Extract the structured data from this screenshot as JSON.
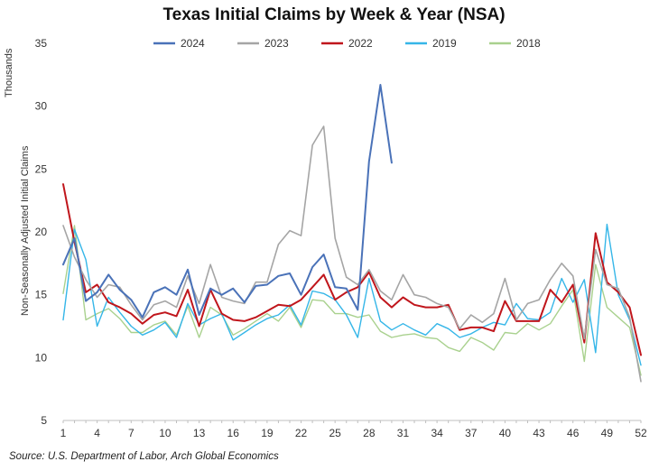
{
  "chart_data": {
    "type": "line",
    "title": "Texas Initial Claims by Week & Year (NSA)",
    "ylabel": "Non-Seasonally Adjusted Initial Claims",
    "yunit": "Thousands",
    "xlabel": "",
    "ylim": [
      5,
      35
    ],
    "yticks": [
      5,
      10,
      15,
      20,
      25,
      30,
      35
    ],
    "xlim": [
      1,
      52
    ],
    "xticks": [
      1,
      4,
      7,
      10,
      13,
      16,
      19,
      22,
      25,
      28,
      31,
      34,
      37,
      40,
      43,
      46,
      49,
      52
    ],
    "legend_position": "top",
    "source": "Source: U.S. Department of Labor, Arch Global Economics",
    "series": [
      {
        "name": "2024",
        "color": "#4a72b8",
        "stroke_width": 2,
        "values": [
          17.4,
          19.5,
          14.5,
          15.2,
          16.6,
          15.4,
          14.6,
          13.2,
          15.2,
          15.6,
          15.0,
          17.0,
          13.4,
          15.5,
          15.0,
          15.5,
          14.4,
          15.7,
          15.8,
          16.5,
          16.7,
          15.0,
          17.2,
          18.2,
          15.6,
          15.5,
          13.8,
          25.6,
          31.7,
          25.5
        ]
      },
      {
        "name": "2023",
        "color": "#a5a5a5",
        "stroke_width": 1.6,
        "values": [
          20.5,
          18.0,
          16.2,
          14.8,
          15.8,
          15.6,
          14.2,
          13.0,
          14.2,
          14.5,
          14.0,
          16.5,
          14.3,
          17.4,
          14.8,
          14.5,
          14.3,
          16.0,
          16.0,
          19.0,
          20.1,
          19.7,
          26.9,
          28.4,
          19.5,
          16.4,
          15.8,
          17.0,
          15.3,
          14.6,
          16.6,
          15.0,
          14.8,
          14.3,
          14.0,
          12.3,
          13.4,
          12.8,
          13.5,
          16.3,
          13.0,
          14.3,
          14.6,
          16.2,
          17.5,
          16.5,
          11.5,
          18.6,
          15.8,
          15.5,
          13.2,
          8.1
        ]
      },
      {
        "name": "2022",
        "color": "#c0161c",
        "stroke_width": 2,
        "values": [
          23.8,
          19.2,
          15.2,
          15.8,
          14.4,
          14.0,
          13.5,
          12.7,
          13.4,
          13.6,
          13.3,
          15.4,
          12.5,
          15.4,
          13.5,
          13.0,
          12.9,
          13.2,
          13.7,
          14.2,
          14.1,
          14.6,
          15.6,
          16.6,
          14.6,
          15.2,
          15.6,
          16.8,
          14.8,
          14.0,
          14.8,
          14.2,
          14.0,
          14.0,
          14.2,
          12.2,
          12.4,
          12.4,
          12.1,
          14.5,
          12.9,
          12.9,
          12.9,
          15.4,
          14.4,
          15.8,
          11.2,
          19.9,
          16.0,
          15.2,
          14.0,
          10.2
        ]
      },
      {
        "name": "2019",
        "color": "#35b6e8",
        "stroke_width": 1.4,
        "values": [
          13.0,
          20.2,
          17.8,
          12.5,
          14.8,
          13.6,
          12.5,
          11.8,
          12.2,
          12.8,
          11.6,
          14.3,
          12.6,
          13.1,
          13.5,
          11.4,
          12.0,
          12.6,
          13.1,
          13.4,
          14.2,
          12.6,
          15.3,
          15.1,
          14.6,
          13.4,
          11.6,
          16.3,
          12.9,
          12.2,
          12.7,
          12.2,
          11.8,
          12.7,
          12.3,
          11.6,
          11.9,
          12.4,
          12.8,
          12.6,
          14.3,
          13.1,
          13.0,
          13.6,
          16.3,
          14.4,
          16.2,
          10.4,
          20.6,
          15.0,
          13.0,
          9.4
        ]
      },
      {
        "name": "2018",
        "color": "#a9d18e",
        "stroke_width": 1.4,
        "values": [
          15.1,
          20.5,
          13.0,
          13.5,
          13.9,
          13.1,
          12.0,
          12.0,
          12.6,
          12.9,
          11.8,
          14.1,
          11.6,
          14.0,
          13.4,
          11.8,
          12.3,
          12.9,
          13.5,
          12.9,
          14.0,
          12.4,
          14.6,
          14.5,
          13.5,
          13.5,
          13.2,
          13.4,
          12.1,
          11.6,
          11.8,
          11.9,
          11.6,
          11.5,
          10.8,
          10.5,
          11.6,
          11.2,
          10.6,
          12.0,
          11.9,
          12.7,
          12.2,
          12.7,
          14.1,
          15.4,
          9.7,
          17.4,
          14.0,
          13.2,
          12.4,
          8.6
        ]
      }
    ]
  }
}
